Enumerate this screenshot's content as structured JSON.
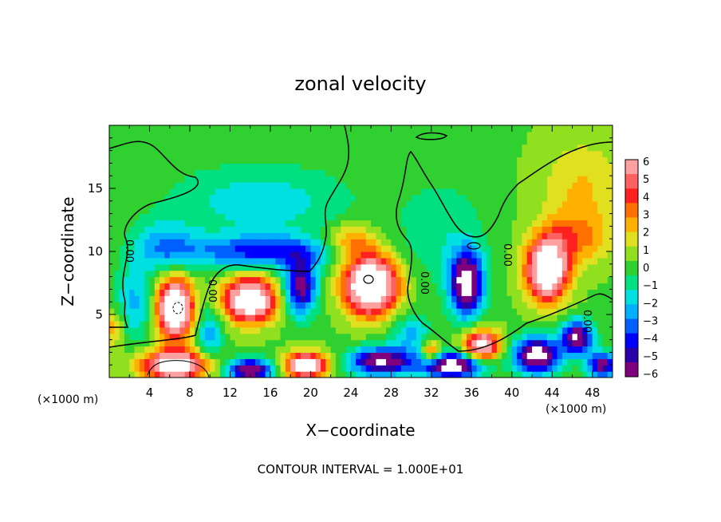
{
  "chart_data": {
    "type": "heatmap",
    "title": "zonal velocity",
    "xlabel": "X−coordinate",
    "ylabel": "Z−coordinate",
    "x_unit_label": "(×1000 m)",
    "x_unit_label_right": "(×1000 m)",
    "xlim": [
      0,
      50
    ],
    "ylim": [
      0,
      20
    ],
    "x_ticks": [
      4,
      8,
      12,
      16,
      20,
      24,
      28,
      32,
      36,
      40,
      44,
      48
    ],
    "y_ticks": [
      5,
      10,
      15
    ],
    "contour_label": "0.00",
    "footer": "CONTOUR INTERVAL = 1.000E+01",
    "colorbar": {
      "labels": [
        "6",
        "5",
        "4",
        "3",
        "2",
        "1",
        "0",
        "−1",
        "−2",
        "−3",
        "−4",
        "−5",
        "−6"
      ],
      "min": -6,
      "max": 6,
      "colors": [
        "#7f007f",
        "#2a00a8",
        "#0000ff",
        "#0060ff",
        "#00b0ff",
        "#00e0e0",
        "#00e080",
        "#30d030",
        "#90e020",
        "#e0e020",
        "#ffb000",
        "#ff7000",
        "#ff2020",
        "#ff6060",
        "#ffa0a0"
      ]
    },
    "background_value": 0.3,
    "features": [
      {
        "x": 6.5,
        "z": 5.5,
        "sx": 1.7,
        "sz": 2.2,
        "v": 10
      },
      {
        "x": 14,
        "z": 6.2,
        "sx": 2.5,
        "sz": 1.7,
        "v": 9
      },
      {
        "x": 19,
        "z": 7.2,
        "sx": 1.6,
        "sz": 2.2,
        "v": -6
      },
      {
        "x": 26,
        "z": 7.4,
        "sx": 2.6,
        "sz": 2.3,
        "v": 10
      },
      {
        "x": 35.5,
        "z": 7.5,
        "sx": 1.6,
        "sz": 2.5,
        "v": -8
      },
      {
        "x": 43.5,
        "z": 8.5,
        "sx": 2.0,
        "sz": 2.3,
        "v": 9
      },
      {
        "x": 6.5,
        "z": 1.0,
        "sx": 3.2,
        "sz": 1.2,
        "v": 8
      },
      {
        "x": 14,
        "z": 0.6,
        "sx": 2.2,
        "sz": 0.9,
        "v": -7
      },
      {
        "x": 19.5,
        "z": 1.0,
        "sx": 2.0,
        "sz": 1.0,
        "v": 8
      },
      {
        "x": 27,
        "z": 1.3,
        "sx": 3.0,
        "sz": 1.1,
        "v": -7
      },
      {
        "x": 34,
        "z": 1.0,
        "sx": 3.0,
        "sz": 1.0,
        "v": -8
      },
      {
        "x": 37,
        "z": 2.6,
        "sx": 1.8,
        "sz": 1.2,
        "v": 7
      },
      {
        "x": 42.5,
        "z": 1.8,
        "sx": 2.2,
        "sz": 1.4,
        "v": -8
      },
      {
        "x": 46.5,
        "z": 3.2,
        "sx": 1.5,
        "sz": 1.3,
        "v": -7
      },
      {
        "x": 49,
        "z": 1.0,
        "sx": 1.5,
        "sz": 1.0,
        "v": -6
      },
      {
        "x": 15,
        "z": 10.0,
        "sx": 8.0,
        "sz": 1.3,
        "v": -4
      },
      {
        "x": 15,
        "z": 14.0,
        "sx": 9.0,
        "sz": 3.0,
        "v": -2
      },
      {
        "x": 5.5,
        "z": 10.5,
        "sx": 3.0,
        "sz": 2.0,
        "v": -2.5
      },
      {
        "x": 33,
        "z": 11.5,
        "sx": 4.5,
        "sz": 4.5,
        "v": -1.3
      },
      {
        "x": 24,
        "z": 10.8,
        "sx": 2.5,
        "sz": 1.3,
        "v": 3
      },
      {
        "x": 47,
        "z": 15.0,
        "sx": 4.0,
        "sz": 4.0,
        "v": 1.8
      },
      {
        "x": 46,
        "z": 11.0,
        "sx": 3.5,
        "sz": 2.0,
        "v": 2.5
      },
      {
        "x": 2.5,
        "z": 6.0,
        "sx": 2.0,
        "sz": 3.0,
        "v": -2.5
      },
      {
        "x": 10,
        "z": 3.5,
        "sx": 1.2,
        "sz": 2.0,
        "v": -3
      },
      {
        "x": 30,
        "z": 3.5,
        "sx": 2.0,
        "sz": 1.5,
        "v": -2.5
      },
      {
        "x": 32,
        "z": 2.0,
        "sx": 1.0,
        "sz": 1.0,
        "v": 4
      },
      {
        "x": 0.5,
        "z": 4.0,
        "sx": 1.0,
        "sz": 1.5,
        "v": 2.5
      }
    ]
  }
}
